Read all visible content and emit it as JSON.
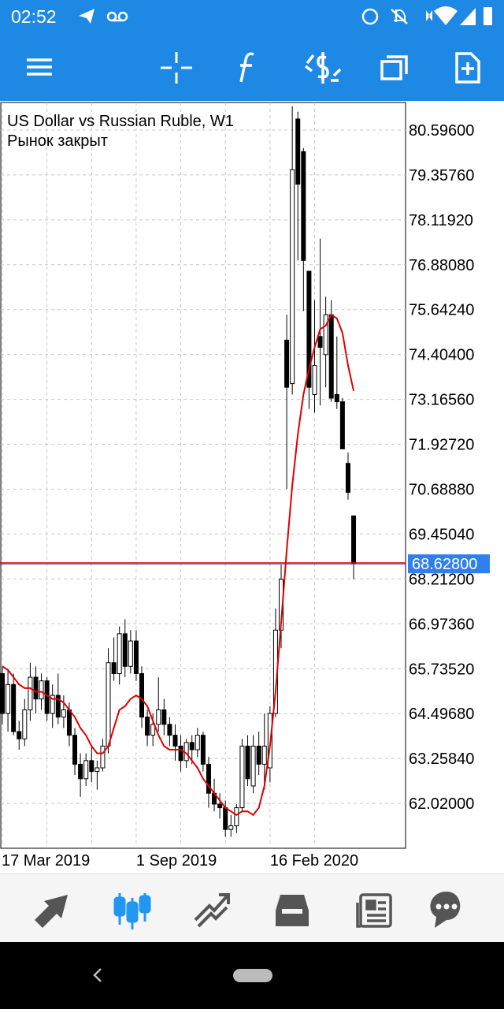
{
  "status_bar": {
    "time": "02:52"
  },
  "chart_data": {
    "type": "candlestick",
    "title": "US Dollar vs Russian Ruble, W1",
    "subtitle": "Рынок закрыт",
    "categories": [
      "17 Mar 2019",
      null,
      null,
      null,
      null,
      null,
      null,
      null,
      null,
      null,
      null,
      null,
      null,
      null,
      null,
      null,
      null,
      null,
      null,
      null,
      null,
      null,
      null,
      null,
      "1 Sep 2019",
      null,
      null,
      null,
      null,
      null,
      null,
      null,
      null,
      null,
      null,
      null,
      null,
      null,
      null,
      null,
      null,
      null,
      null,
      null,
      null,
      null,
      null,
      null,
      "16 Feb 2020",
      null,
      null,
      null,
      null,
      null,
      null,
      null,
      null,
      null,
      null,
      null,
      null,
      null,
      null,
      null
    ],
    "open": [
      65.6,
      64.5,
      65.3,
      64.0,
      63.8,
      64.6,
      65.5,
      64.9,
      65.4,
      64.5,
      65.0,
      64.4,
      64.6,
      63.9,
      63.1,
      62.7,
      63.2,
      62.9,
      63.0,
      63.6,
      65.9,
      65.6,
      66.7,
      65.8,
      66.5,
      65.6,
      64.4,
      63.9,
      64.2,
      64.6,
      64.2,
      63.9,
      63.6,
      63.2,
      63.7,
      63.5,
      63.9,
      63.1,
      62.3,
      62.0,
      61.9,
      61.3,
      61.4,
      61.9,
      63.6,
      62.5,
      63.6,
      63.1,
      63.0,
      64.5,
      66.8,
      74.8,
      73.6,
      80.9,
      80.0,
      76.7,
      73.3,
      74.9,
      74.4,
      75.5,
      73.3,
      73.1,
      71.4,
      69.95
    ],
    "high": [
      65.8,
      65.7,
      65.6,
      64.3,
      64.9,
      65.9,
      65.8,
      65.6,
      65.5,
      65.3,
      65.6,
      65.0,
      64.8,
      64.1,
      63.4,
      63.4,
      63.6,
      63.2,
      63.8,
      66.3,
      66.6,
      66.9,
      67.1,
      66.8,
      66.8,
      65.8,
      64.6,
      64.5,
      65.5,
      64.9,
      64.4,
      64.2,
      63.9,
      63.8,
      63.9,
      64.1,
      64.0,
      63.3,
      62.7,
      62.3,
      62.1,
      61.7,
      62.0,
      63.8,
      63.9,
      63.9,
      64.0,
      64.5,
      64.7,
      67.4,
      68.6,
      75.5,
      81.25,
      81.1,
      80.1,
      76.7,
      75.9,
      77.6,
      76.0,
      75.9,
      74.9,
      73.2,
      71.7,
      69.95
    ],
    "low": [
      64.2,
      64.0,
      63.9,
      63.5,
      63.6,
      64.3,
      64.5,
      64.6,
      64.3,
      64.1,
      64.2,
      64.1,
      63.6,
      62.8,
      62.2,
      62.5,
      62.6,
      62.4,
      62.9,
      63.4,
      65.4,
      65.3,
      65.5,
      65.6,
      65.4,
      64.1,
      63.6,
      63.6,
      64.0,
      63.9,
      63.6,
      63.2,
      62.9,
      63.0,
      63.1,
      63.3,
      62.9,
      61.9,
      61.8,
      61.6,
      61.1,
      61.1,
      61.2,
      61.8,
      62.5,
      62.3,
      62.8,
      62.4,
      62.6,
      64.4,
      66.3,
      70.7,
      73.3,
      77.0,
      75.6,
      72.9,
      72.8,
      73.0,
      73.5,
      73.1,
      72.9,
      71.8,
      70.4,
      68.2
    ],
    "close": [
      64.5,
      65.3,
      64.0,
      63.8,
      64.6,
      65.5,
      64.9,
      65.4,
      64.5,
      65.0,
      64.4,
      64.6,
      63.9,
      63.1,
      62.7,
      63.2,
      62.9,
      63.0,
      63.6,
      65.9,
      65.6,
      66.7,
      65.8,
      66.5,
      65.6,
      64.4,
      63.9,
      64.2,
      64.6,
      64.2,
      63.9,
      63.6,
      63.2,
      63.7,
      63.5,
      63.9,
      63.1,
      62.3,
      62.0,
      61.9,
      61.3,
      61.4,
      61.9,
      63.6,
      62.7,
      63.6,
      63.1,
      63.6,
      64.5,
      66.8,
      68.2,
      73.5,
      79.5,
      79.1,
      77.0,
      73.5,
      74.1,
      74.6,
      75.5,
      73.2,
      73.1,
      71.8,
      70.6,
      68.628
    ],
    "up_color": "#ffffff",
    "down_color": "#000000",
    "overlay": {
      "color": "#e00000",
      "values": [
        65.8,
        65.7,
        65.5,
        65.3,
        65.2,
        65.2,
        65.1,
        65.1,
        65.0,
        64.9,
        64.9,
        64.8,
        64.6,
        64.4,
        64.1,
        63.9,
        63.6,
        63.4,
        63.4,
        63.6,
        64.1,
        64.6,
        64.7,
        64.9,
        65.0,
        64.9,
        64.7,
        64.3,
        63.9,
        63.6,
        63.5,
        63.5,
        63.5,
        63.4,
        63.2,
        63.0,
        62.7,
        62.5,
        62.3,
        62.1,
        61.9,
        61.8,
        61.7,
        61.8,
        61.8,
        61.7,
        61.9,
        62.5,
        63.6,
        65.1,
        67.0,
        69.0,
        70.8,
        72.2,
        73.3,
        74.0,
        74.6,
        75.1,
        75.2,
        75.5,
        75.4,
        75.0,
        74.1,
        73.4
      ]
    },
    "price_line": {
      "value": 68.628,
      "label": "68.62800",
      "color": "#3f51b5"
    },
    "ylim": [
      60.782,
      81.356
    ],
    "yticks": [
      {
        "value": 80.596,
        "label": "80.59600"
      },
      {
        "value": 79.3576,
        "label": "79.35760"
      },
      {
        "value": 78.1192,
        "label": "78.11920"
      },
      {
        "value": 76.8808,
        "label": "76.88080"
      },
      {
        "value": 75.6424,
        "label": "75.64240"
      },
      {
        "value": 74.404,
        "label": "74.40400"
      },
      {
        "value": 73.1656,
        "label": "73.16560"
      },
      {
        "value": 71.9272,
        "label": "71.92720"
      },
      {
        "value": 70.6888,
        "label": "70.68880"
      },
      {
        "value": 69.4504,
        "label": "69.45040"
      },
      {
        "value": 68.212,
        "label": "68.21200"
      },
      {
        "value": 66.9736,
        "label": "66.97360"
      },
      {
        "value": 65.7352,
        "label": "65.73520"
      },
      {
        "value": 64.4968,
        "label": "64.49680"
      },
      {
        "value": 63.2584,
        "label": "63.25840"
      },
      {
        "value": 62.02,
        "label": "62.02000"
      }
    ],
    "grid": true
  }
}
